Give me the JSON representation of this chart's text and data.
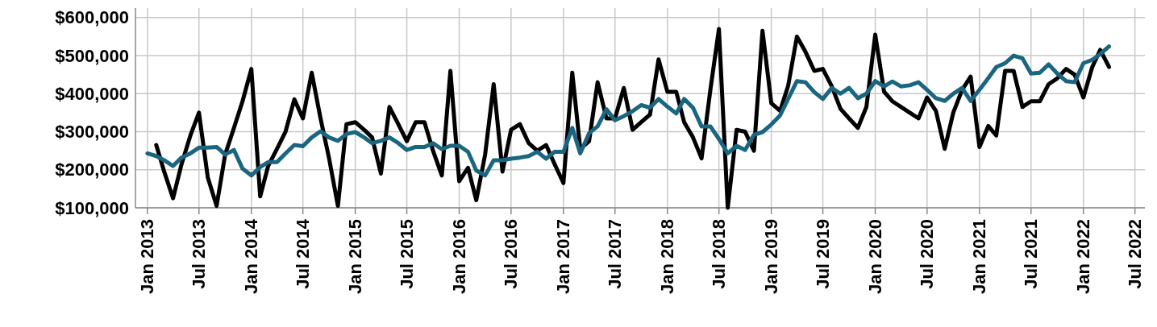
{
  "chart_data": {
    "type": "line",
    "x": [
      "2013-01",
      "2013-02",
      "2013-03",
      "2013-04",
      "2013-05",
      "2013-06",
      "2013-07",
      "2013-08",
      "2013-09",
      "2013-10",
      "2013-11",
      "2013-12",
      "2014-01",
      "2014-02",
      "2014-03",
      "2014-04",
      "2014-05",
      "2014-06",
      "2014-07",
      "2014-08",
      "2014-09",
      "2014-10",
      "2014-11",
      "2014-12",
      "2015-01",
      "2015-02",
      "2015-03",
      "2015-04",
      "2015-05",
      "2015-06",
      "2015-07",
      "2015-08",
      "2015-09",
      "2015-10",
      "2015-11",
      "2015-12",
      "2016-01",
      "2016-02",
      "2016-03",
      "2016-04",
      "2016-05",
      "2016-06",
      "2016-07",
      "2016-08",
      "2016-09",
      "2016-10",
      "2016-11",
      "2016-12",
      "2017-01",
      "2017-02",
      "2017-03",
      "2017-04",
      "2017-05",
      "2017-06",
      "2017-07",
      "2017-08",
      "2017-09",
      "2017-10",
      "2017-11",
      "2017-12",
      "2018-01",
      "2018-02",
      "2018-03",
      "2018-04",
      "2018-05",
      "2018-06",
      "2018-07",
      "2018-08",
      "2018-09",
      "2018-10",
      "2018-11",
      "2018-12",
      "2019-01",
      "2019-02",
      "2019-03",
      "2019-04",
      "2019-05",
      "2019-06",
      "2019-07",
      "2019-08",
      "2019-09",
      "2019-10",
      "2019-11",
      "2019-12",
      "2020-01",
      "2020-02",
      "2020-03",
      "2020-04",
      "2020-05",
      "2020-06",
      "2020-07",
      "2020-08",
      "2020-09",
      "2020-10",
      "2020-11",
      "2020-12",
      "2021-01",
      "2021-02",
      "2021-03",
      "2021-04",
      "2021-05",
      "2021-06",
      "2021-07",
      "2021-08",
      "2021-09",
      "2021-10",
      "2021-11",
      "2021-12",
      "2022-01",
      "2022-02",
      "2022-03",
      "2022-04"
    ],
    "series": [
      {
        "color": "#000000",
        "values": [
          null,
          265000,
          195000,
          125000,
          215000,
          290000,
          350000,
          180000,
          105000,
          240000,
          310000,
          380000,
          465000,
          130000,
          210000,
          255000,
          300000,
          385000,
          335000,
          455000,
          335000,
          230000,
          105000,
          320000,
          325000,
          305000,
          285000,
          190000,
          365000,
          320000,
          275000,
          325000,
          325000,
          250000,
          185000,
          460000,
          170000,
          205000,
          120000,
          240000,
          425000,
          195000,
          305000,
          320000,
          270000,
          250000,
          265000,
          215000,
          165000,
          455000,
          255000,
          275000,
          430000,
          335000,
          335000,
          415000,
          305000,
          325000,
          345000,
          490000,
          405000,
          405000,
          325000,
          285000,
          230000,
          410000,
          570000,
          100000,
          305000,
          300000,
          250000,
          565000,
          375000,
          355000,
          420000,
          550000,
          510000,
          460000,
          465000,
          420000,
          360000,
          335000,
          310000,
          365000,
          555000,
          405000,
          380000,
          365000,
          350000,
          335000,
          390000,
          355000,
          255000,
          350000,
          410000,
          445000,
          260000,
          315000,
          290000,
          460000,
          460000,
          365000,
          380000,
          380000,
          425000,
          440000,
          465000,
          450000,
          390000,
          470000,
          515000,
          470000
        ]
      },
      {
        "color": "#1a6580",
        "values": [
          243000,
          236000,
          225000,
          210000,
          232000,
          243000,
          258000,
          258000,
          260000,
          240000,
          252000,
          203000,
          185000,
          207000,
          220000,
          220000,
          243000,
          265000,
          262000,
          285000,
          301000,
          285000,
          276000,
          294000,
          299000,
          285000,
          270000,
          276000,
          285000,
          270000,
          252000,
          260000,
          260000,
          270000,
          254000,
          263000,
          263000,
          247000,
          198000,
          185000,
          225000,
          225000,
          229000,
          232000,
          236000,
          247000,
          229000,
          247000,
          247000,
          310000,
          243000,
          296000,
          314000,
          359000,
          330000,
          341000,
          354000,
          370000,
          363000,
          386000,
          366000,
          348000,
          386000,
          363000,
          314000,
          314000,
          281000,
          243000,
          263000,
          252000,
          292000,
          299000,
          319000,
          343000,
          386000,
          433000,
          430000,
          404000,
          386000,
          415000,
          400000,
          415000,
          388000,
          400000,
          433000,
          419000,
          432000,
          419000,
          422000,
          430000,
          410000,
          388000,
          381000,
          400000,
          415000,
          381000,
          410000,
          441000,
          470000,
          480000,
          500000,
          493000,
          453000,
          455000,
          477000,
          453000,
          433000,
          430000,
          480000,
          489000,
          504000,
          524000
        ]
      }
    ],
    "xlim": [
      "2012-11-20",
      "2022-08-05"
    ],
    "xticks": [
      {
        "value": "2013-01",
        "label": "Jan 2013"
      },
      {
        "value": "2013-07",
        "label": "Jul 2013"
      },
      {
        "value": "2014-01",
        "label": "Jan 2014"
      },
      {
        "value": "2014-07",
        "label": "Jul 2014"
      },
      {
        "value": "2015-01",
        "label": "Jan 2015"
      },
      {
        "value": "2015-07",
        "label": "Jul 2015"
      },
      {
        "value": "2016-01",
        "label": "Jan 2016"
      },
      {
        "value": "2016-07",
        "label": "Jul 2016"
      },
      {
        "value": "2017-01",
        "label": "Jan 2017"
      },
      {
        "value": "2017-07",
        "label": "Jul 2017"
      },
      {
        "value": "2018-01",
        "label": "Jan 2018"
      },
      {
        "value": "2018-07",
        "label": "Jul 2018"
      },
      {
        "value": "2019-01",
        "label": "Jan 2019"
      },
      {
        "value": "2019-07",
        "label": "Jul 2019"
      },
      {
        "value": "2020-01",
        "label": "Jan 2020"
      },
      {
        "value": "2020-07",
        "label": "Jul 2020"
      },
      {
        "value": "2021-01",
        "label": "Jan 2021"
      },
      {
        "value": "2021-07",
        "label": "Jul 2021"
      },
      {
        "value": "2022-01",
        "label": "Jan 2022"
      },
      {
        "value": "2022-07",
        "label": "Jul 2022"
      }
    ],
    "ylim": [
      100000,
      625000
    ],
    "yticks": [
      {
        "value": 100000,
        "label": "$100,000"
      },
      {
        "value": 200000,
        "label": "$200,000"
      },
      {
        "value": 300000,
        "label": "$300,000"
      },
      {
        "value": 400000,
        "label": "$400,000"
      },
      {
        "value": 500000,
        "label": "$500,000"
      },
      {
        "value": 600000,
        "label": "$600,000"
      }
    ],
    "grid": true,
    "marker": "none",
    "line_style": "solid"
  }
}
